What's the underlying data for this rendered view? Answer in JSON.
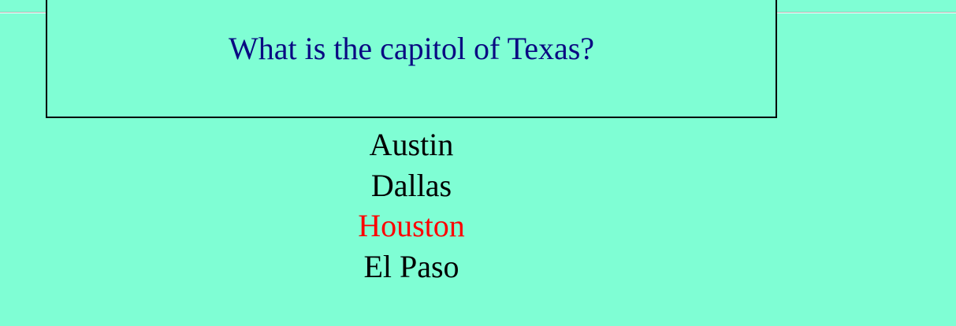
{
  "question": {
    "text": "What is the capitol of Texas?"
  },
  "answers": [
    {
      "label": "Austin",
      "highlighted": false
    },
    {
      "label": "Dallas",
      "highlighted": false
    },
    {
      "label": "Houston",
      "highlighted": true
    },
    {
      "label": "El Paso",
      "highlighted": false
    }
  ],
  "colors": {
    "background": "#7ffed4",
    "question": "#0a0a82",
    "answer": "#000000",
    "highlight": "#ff0000"
  }
}
